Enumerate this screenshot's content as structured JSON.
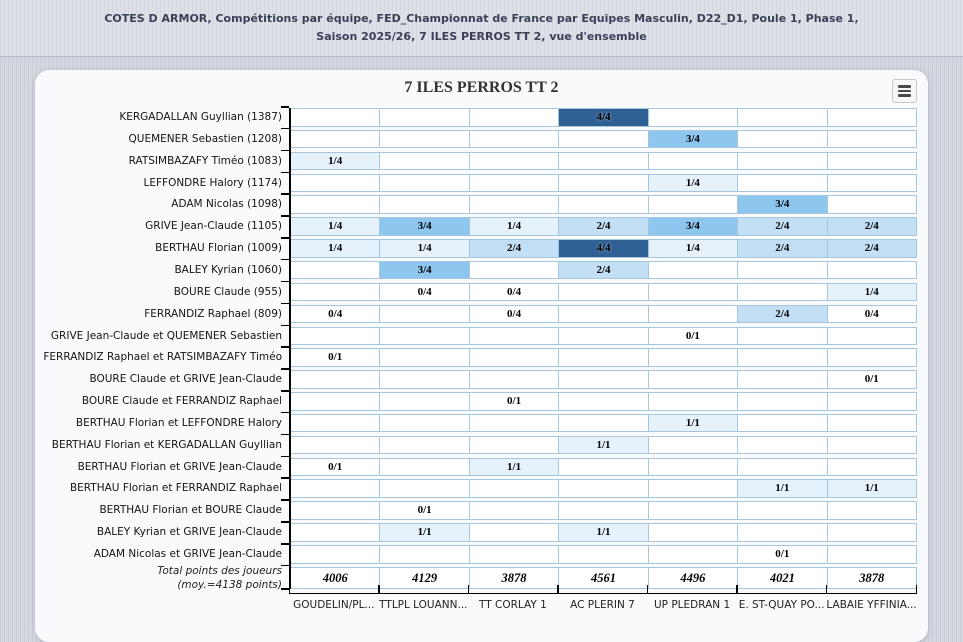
{
  "header": {
    "breadcrumb": "COTES D ARMOR, Compétitions par équipe, FED_Championnat de France par Equipes Masculin, D22_D1, Poule 1, Phase 1, Saison 2025/26, 7 ILES PERROS TT 2, vue d'ensemble"
  },
  "menu": {
    "icon": "hamburger-icon"
  },
  "chart_data": {
    "type": "heatmap",
    "title": "7 ILES PERROS TT 2",
    "legend_position": "none",
    "columns": [
      "GOUDELIN/PL...",
      "TTLPL LOUANN...",
      "TT CORLAY 1",
      "AC PLERIN 7",
      "UP PLEDRAN 1",
      "E. ST-QUAY PO...",
      "LABAIE YFFINIA..."
    ],
    "rows": [
      {
        "label": "KERGADALLAN Guyllian (1387)",
        "values": [
          null,
          null,
          null,
          "4/4",
          null,
          null,
          null
        ]
      },
      {
        "label": "QUEMENER Sebastien (1208)",
        "values": [
          null,
          null,
          null,
          null,
          "3/4",
          null,
          null
        ]
      },
      {
        "label": "RATSIMBAZAFY Timéo (1083)",
        "values": [
          "1/4",
          null,
          null,
          null,
          null,
          null,
          null
        ]
      },
      {
        "label": "LEFFONDRE Halory (1174)",
        "values": [
          null,
          null,
          null,
          null,
          "1/4",
          null,
          null
        ]
      },
      {
        "label": "ADAM Nicolas (1098)",
        "values": [
          null,
          null,
          null,
          null,
          null,
          "3/4",
          null
        ]
      },
      {
        "label": "GRIVE Jean-Claude (1105)",
        "values": [
          "1/4",
          "3/4",
          "1/4",
          "2/4",
          "3/4",
          "2/4",
          "2/4"
        ]
      },
      {
        "label": "BERTHAU Florian (1009)",
        "values": [
          "1/4",
          "1/4",
          "2/4",
          "4/4",
          "1/4",
          "2/4",
          "2/4"
        ]
      },
      {
        "label": "BALEY Kyrian (1060)",
        "values": [
          null,
          "3/4",
          null,
          "2/4",
          null,
          null,
          null
        ]
      },
      {
        "label": "BOURE Claude (955)",
        "values": [
          null,
          "0/4",
          "0/4",
          null,
          null,
          null,
          "1/4"
        ]
      },
      {
        "label": "FERRANDIZ Raphael (809)",
        "values": [
          "0/4",
          null,
          "0/4",
          null,
          null,
          "2/4",
          "0/4"
        ]
      },
      {
        "label": "GRIVE Jean-Claude et QUEMENER Sebastien",
        "values": [
          null,
          null,
          null,
          null,
          "0/1",
          null,
          null
        ]
      },
      {
        "label": "FERRANDIZ Raphael et RATSIMBAZAFY Timéo",
        "values": [
          "0/1",
          null,
          null,
          null,
          null,
          null,
          null
        ]
      },
      {
        "label": "BOURE Claude et GRIVE Jean-Claude",
        "values": [
          null,
          null,
          null,
          null,
          null,
          null,
          "0/1"
        ]
      },
      {
        "label": "BOURE Claude et FERRANDIZ Raphael",
        "values": [
          null,
          null,
          "0/1",
          null,
          null,
          null,
          null
        ]
      },
      {
        "label": "BERTHAU Florian et LEFFONDRE Halory",
        "values": [
          null,
          null,
          null,
          null,
          "1/1",
          null,
          null
        ]
      },
      {
        "label": "BERTHAU Florian et KERGADALLAN Guyllian",
        "values": [
          null,
          null,
          null,
          "1/1",
          null,
          null,
          null
        ]
      },
      {
        "label": "BERTHAU Florian et GRIVE Jean-Claude",
        "values": [
          "0/1",
          null,
          "1/1",
          null,
          null,
          null,
          null
        ]
      },
      {
        "label": "BERTHAU Florian et FERRANDIZ Raphael",
        "values": [
          null,
          null,
          null,
          null,
          null,
          "1/1",
          "1/1"
        ]
      },
      {
        "label": "BERTHAU Florian et BOURE Claude",
        "values": [
          null,
          "0/1",
          null,
          null,
          null,
          null,
          null
        ]
      },
      {
        "label": "BALEY Kyrian et GRIVE Jean-Claude",
        "values": [
          null,
          "1/1",
          null,
          "1/1",
          null,
          null,
          null
        ]
      },
      {
        "label": "ADAM Nicolas et GRIVE Jean-Claude",
        "values": [
          null,
          null,
          null,
          null,
          null,
          "0/1",
          null
        ]
      }
    ],
    "totals": {
      "label_line1": "Total points des joueurs",
      "label_line2": "(moy.=4138 points)",
      "values": [
        "4006",
        "4129",
        "3878",
        "4561",
        "4496",
        "4021",
        "3878"
      ]
    },
    "color_scale": {
      "w0": "#ffffff",
      "w1": "#e5f1fb",
      "w2": "#c2dff5",
      "w3": "#8dc6ee",
      "w4": "#2e6093"
    },
    "cell_border_color": "#a6c6de",
    "axis_color": "#000000"
  }
}
